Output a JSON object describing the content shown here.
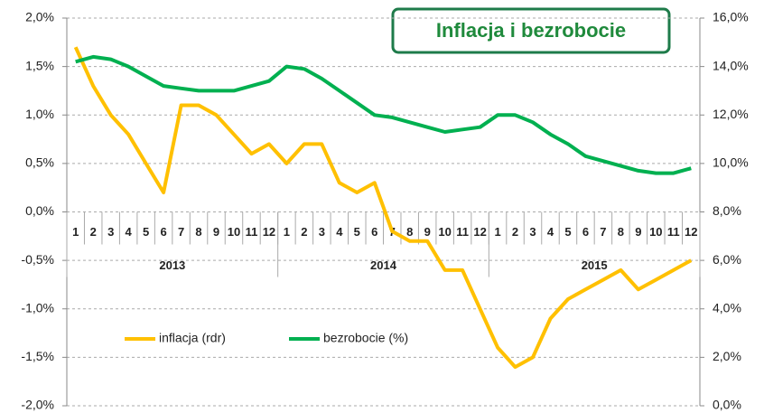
{
  "chart_data": {
    "type": "line",
    "title": "Inflacja i bezrobocie",
    "categories": [
      "1",
      "2",
      "3",
      "4",
      "5",
      "6",
      "7",
      "8",
      "9",
      "10",
      "11",
      "12",
      "1",
      "2",
      "3",
      "4",
      "5",
      "6",
      "7",
      "8",
      "9",
      "10",
      "11",
      "12",
      "1",
      "2",
      "3",
      "4",
      "5",
      "6",
      "7",
      "8",
      "9",
      "10",
      "11",
      "12"
    ],
    "groups": [
      "2013",
      "2014",
      "2015"
    ],
    "series": [
      {
        "name": "inflacja (rdr)",
        "color": "#FFC000",
        "axis": "y",
        "values": [
          1.7,
          1.3,
          1.0,
          0.8,
          0.5,
          0.2,
          1.1,
          1.1,
          1.0,
          0.8,
          0.6,
          0.7,
          0.5,
          0.7,
          0.7,
          0.3,
          0.2,
          0.3,
          -0.2,
          -0.3,
          -0.3,
          -0.6,
          -0.6,
          -1.0,
          -1.4,
          -1.6,
          -1.5,
          -1.1,
          -0.9,
          -0.8,
          -0.7,
          -0.6,
          -0.8,
          -0.7,
          -0.6,
          -0.5
        ]
      },
      {
        "name": "bezrobocie (%)",
        "color": "#00B050",
        "axis": "y2",
        "values": [
          14.2,
          14.4,
          14.3,
          14.0,
          13.6,
          13.2,
          13.1,
          13.0,
          13.0,
          13.0,
          13.2,
          13.4,
          14.0,
          13.9,
          13.5,
          13.0,
          12.5,
          12.0,
          11.9,
          11.7,
          11.5,
          11.3,
          11.4,
          11.5,
          12.0,
          12.0,
          11.7,
          11.2,
          10.8,
          10.3,
          10.1,
          9.9,
          9.7,
          9.6,
          9.6,
          9.8
        ]
      }
    ],
    "ylim": [
      -2.0,
      2.0
    ],
    "yticks": [
      {
        "value": -2.0,
        "label": "-2,0%"
      },
      {
        "value": -1.5,
        "label": "-1,5%"
      },
      {
        "value": -1.0,
        "label": "-1,0%"
      },
      {
        "value": -0.5,
        "label": "-0,5%"
      },
      {
        "value": 0.0,
        "label": "0,0%"
      },
      {
        "value": 0.5,
        "label": "0,5%"
      },
      {
        "value": 1.0,
        "label": "1,0%"
      },
      {
        "value": 1.5,
        "label": "1,5%"
      },
      {
        "value": 2.0,
        "label": "2,0%"
      }
    ],
    "y2lim": [
      0,
      16
    ],
    "y2ticks": [
      {
        "value": 0,
        "label": "0,0%"
      },
      {
        "value": 2,
        "label": "2,0%"
      },
      {
        "value": 4,
        "label": "4,0%"
      },
      {
        "value": 6,
        "label": "6,0%"
      },
      {
        "value": 8,
        "label": "8,0%"
      },
      {
        "value": 10,
        "label": "10,0%"
      },
      {
        "value": 12,
        "label": "12,0%"
      },
      {
        "value": 14,
        "label": "14,0%"
      },
      {
        "value": 16,
        "label": "16,0%"
      }
    ],
    "grid": true
  }
}
